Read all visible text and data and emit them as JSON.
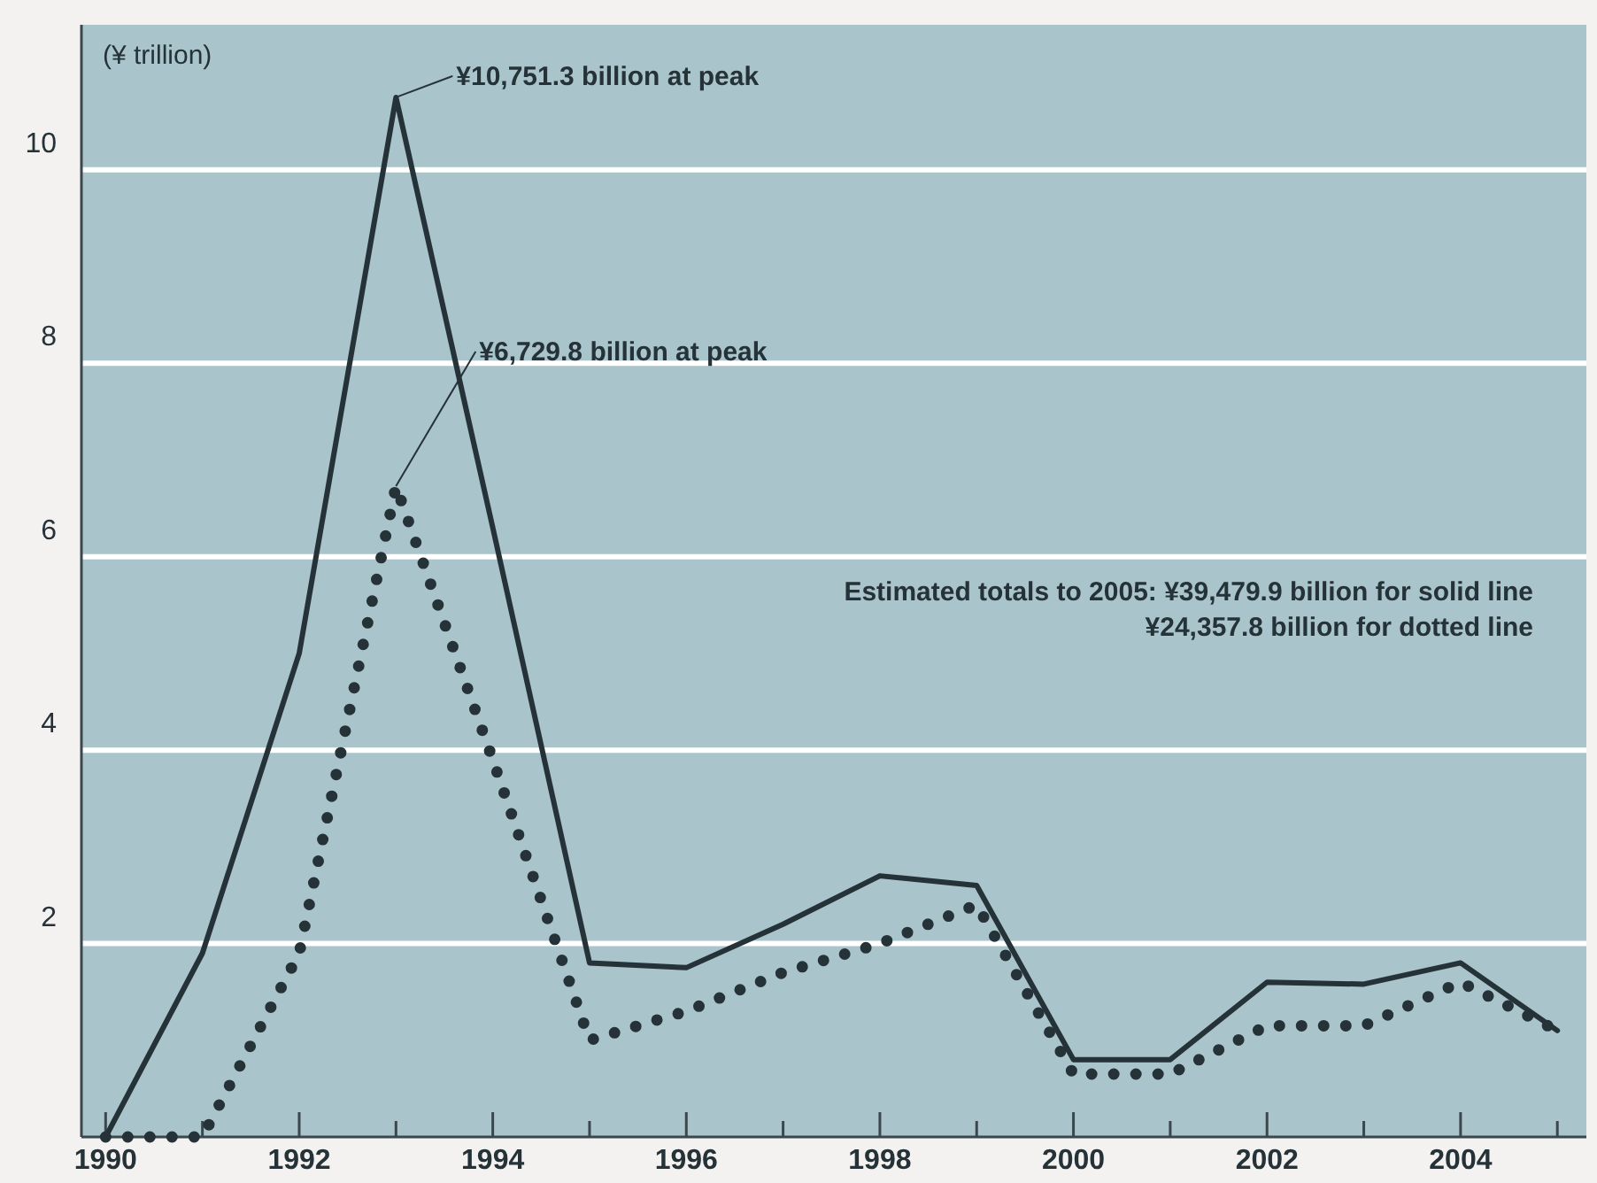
{
  "chart_data": {
    "type": "line",
    "ylabel": "(¥ trillion)",
    "x": [
      1990,
      1991,
      1992,
      1993,
      1994,
      1995,
      1996,
      1997,
      1998,
      1999,
      2000,
      2001,
      2002,
      2003,
      2004,
      2005
    ],
    "series": [
      {
        "color": "#253238",
        "line_style": "solid",
        "values": [
          0,
          1.9,
          5.0,
          10.75,
          6.3,
          1.8,
          1.75,
          2.2,
          2.7,
          2.6,
          0.8,
          0.8,
          1.6,
          1.58,
          1.8,
          1.1
        ]
      },
      {
        "color": "#253238",
        "line_style": "dotted",
        "values": [
          0,
          0,
          1.9,
          6.73,
          3.9,
          1.0,
          1.3,
          1.7,
          2.0,
          2.4,
          0.65,
          0.65,
          1.15,
          1.15,
          1.6,
          1.1
        ]
      }
    ],
    "xlim": [
      1989.75,
      2005.3
    ],
    "xticks": [
      1990,
      {
        "value": 1991,
        "label": null
      },
      1992,
      {
        "value": 1993,
        "label": null
      },
      1994,
      {
        "value": 1995,
        "label": null
      },
      1996,
      {
        "value": 1997,
        "label": null
      },
      1998,
      {
        "value": 1999,
        "label": null
      },
      2000,
      {
        "value": 2001,
        "label": null
      },
      2002,
      {
        "value": 2003,
        "label": null
      },
      2004,
      {
        "value": 2005,
        "label": null
      }
    ],
    "ylim": [
      0,
      11.5
    ],
    "yticks": [
      2,
      4,
      6,
      8,
      10
    ],
    "grid": "y",
    "annotations": [
      {
        "text": "¥10,751.3 billion at peak",
        "x": 1993,
        "y": 10.75
      },
      {
        "text": "¥6,729.8 billion at peak",
        "x": 1993,
        "y": 6.73
      },
      "Estimated totals to 2005: ¥39,479.9 billion for solid line",
      "¥24,357.8 billion for dotted line"
    ]
  }
}
